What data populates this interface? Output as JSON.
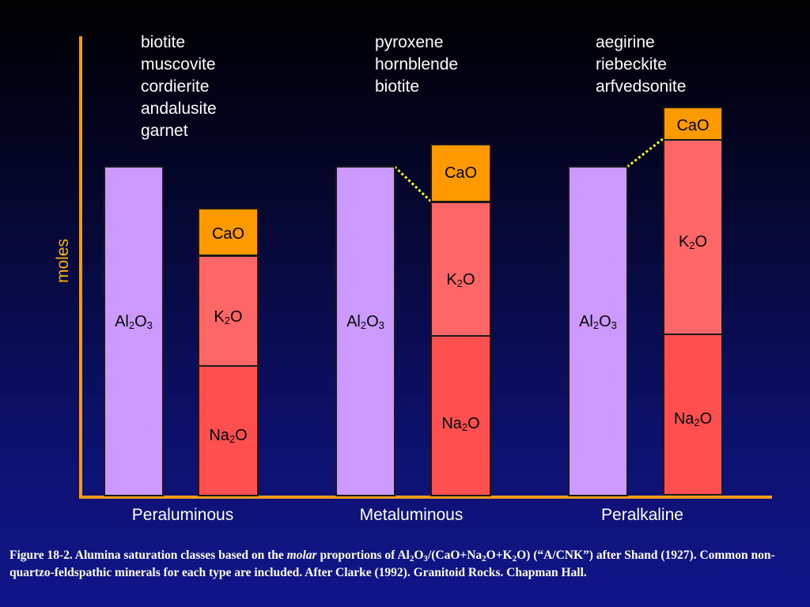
{
  "groups": [
    {
      "category": "Peraluminous",
      "minerals": [
        "biotite",
        "muscovite",
        "cordierite",
        "andalusite",
        "garnet"
      ],
      "al_label": {
        "base": "Al",
        "sub1": "2",
        "mid": "O",
        "sub2": "3"
      },
      "cao": "CaO",
      "k2o": {
        "base": "K",
        "sub": "2",
        "tail": "O"
      },
      "na2o": {
        "base": "Na",
        "sub": "2",
        "tail": "O"
      }
    },
    {
      "category": "Metaluminous",
      "minerals": [
        "pyroxene",
        "hornblende",
        "biotite"
      ],
      "al_label": {
        "base": "Al",
        "sub1": "2",
        "mid": "O",
        "sub2": "3"
      },
      "cao": "CaO",
      "k2o": {
        "base": "K",
        "sub": "2",
        "tail": "O"
      },
      "na2o": {
        "base": "Na",
        "sub": "2",
        "tail": "O"
      }
    },
    {
      "category": "Peralkaline",
      "minerals": [
        "aegirine",
        "riebeckite",
        "arfvedsonite"
      ],
      "al_label": {
        "base": "Al",
        "sub1": "2",
        "mid": "O",
        "sub2": "3"
      },
      "cao": "CaO",
      "k2o": {
        "base": "K",
        "sub": "2",
        "tail": "O"
      },
      "na2o": {
        "base": "Na",
        "sub": "2",
        "tail": "O"
      }
    }
  ],
  "ylabel": "moles",
  "caption": {
    "p1": "Figure 18-2. Alumina saturation classes based on the ",
    "molar": "molar",
    "p2": " proportions of Al",
    "s1": "2",
    "p3": "O",
    "s2": "3",
    "p4": "/(CaO+Na",
    "s3": "2",
    "p5": "O+K",
    "s4": "2",
    "p6": "O) (“A/CNK”) after Shand (1927). Common non-quartzo-feldspathic minerals for each type are included. After Clarke (1992). Granitoid Rocks. Chapman Hall."
  },
  "colors": {
    "al2o3": "#cc99ff",
    "cao": "#ff9900",
    "k2o": "#ff6666",
    "na2o": "#ff4f4f",
    "axis": "#f39a16",
    "ylabel": "#ffb300",
    "dotted": "#ffff00"
  }
}
